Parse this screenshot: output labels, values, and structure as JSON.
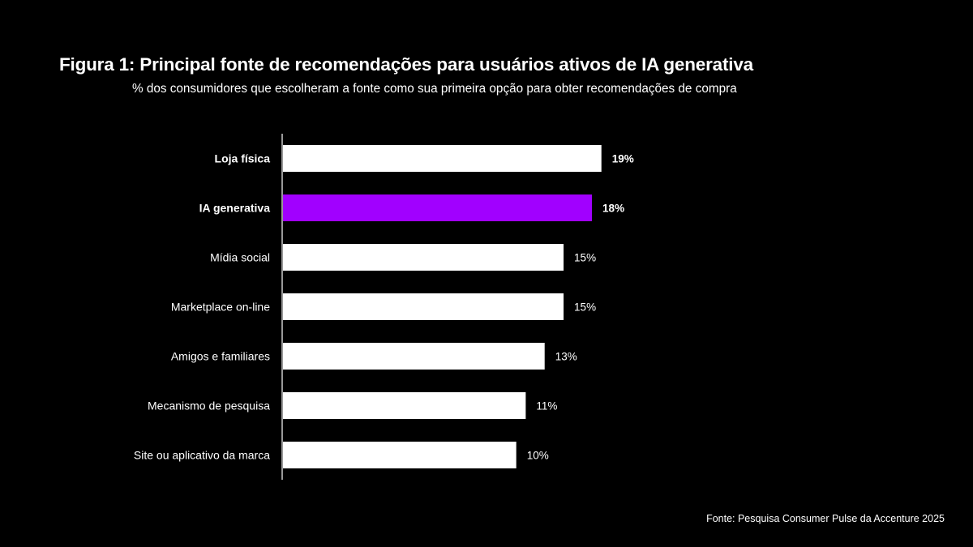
{
  "chart_data": {
    "type": "bar",
    "orientation": "horizontal",
    "title": "Figura 1: Principal fonte de recomendações para usuários ativos de IA generativa",
    "subtitle": "% dos consumidores que escolheram a fonte como sua primeira opção para obter recomendações de compra",
    "categories": [
      "Loja física",
      "IA generativa",
      "Mídia social",
      "Marketplace on-line",
      "Amigos e familiares",
      "Mecanismo de pesquisa",
      "Site ou aplicativo da marca"
    ],
    "values": [
      19,
      18,
      15,
      15,
      13,
      11,
      10
    ],
    "data_labels": [
      "19%",
      "18%",
      "15%",
      "15%",
      "13%",
      "11%",
      "10%"
    ],
    "bold_categories": [
      "Loja física",
      "IA generativa"
    ],
    "colors": {
      "default": "#ffffff",
      "highlight": "#a100ff",
      "background": "#000000"
    },
    "highlight_category": "IA generativa",
    "grid": false,
    "legend": "none",
    "xlabel": "",
    "ylabel": ""
  },
  "source": "Fonte: Pesquisa Consumer Pulse da Accenture 2025"
}
